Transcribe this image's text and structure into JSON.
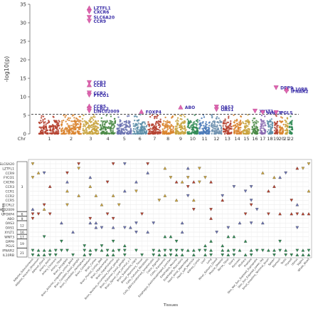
{
  "chart_data": [
    {
      "type": "scatter",
      "subtype": "manhattan",
      "ylabel": "-log10(p)",
      "ylim": [
        0,
        35
      ],
      "yticks": [
        0,
        5,
        10,
        15,
        20,
        25,
        30,
        35
      ],
      "xlabel": "Chr",
      "chromosomes": [
        "1",
        "2",
        "3",
        "4",
        "5",
        "6",
        "7",
        "8",
        "9",
        "10",
        "11",
        "12",
        "13",
        "14",
        "15",
        "16",
        "17",
        "18",
        "19",
        "20",
        "21",
        "22"
      ],
      "chromosome_colors": [
        "#b5412f",
        "#d9822b",
        "#c8a23c",
        "#4a8a45",
        "#6a72b0",
        "#5c8ea8",
        "#b5412f",
        "#d9822b",
        "#c8a23c",
        "#2f8a53",
        "#4a7ab8",
        "#6c8fae",
        "#b5412f",
        "#d9822b",
        "#c8a23c",
        "#4a8a45",
        "#8a6ab0",
        "#5c8ea8",
        "#b5412f",
        "#d9822b",
        "#c8a23c",
        "#2f8a53"
      ],
      "significance_line": 5.3,
      "grid": false,
      "annotations": [
        {
          "genes": [
            "LZTFL1",
            "CXCR6",
            "SLC6A20",
            "CCR9"
          ],
          "chr": "3",
          "y": [
            34,
            33,
            31.5,
            30.5
          ],
          "color": "#e066b0",
          "marker": [
            "triangle-up",
            "triangle-down",
            "triangle-down",
            "triangle-down"
          ]
        },
        {
          "genes": [
            "CCR3",
            "CCR1"
          ],
          "chr": "3",
          "y": [
            13.9,
            13.2
          ],
          "color": "#e066b0",
          "marker": [
            "triangle-down",
            "triangle-up"
          ]
        },
        {
          "genes": [
            "CCR2",
            "FYCO1"
          ],
          "chr": "3",
          "y": [
            11.1,
            10.5
          ],
          "color": "#e066b0",
          "marker": [
            "triangle-down",
            "triangle-down"
          ]
        },
        {
          "genes": [
            "CCR5",
            "CCRL2",
            "LINC02009"
          ],
          "chr": "3",
          "y": [
            7.5,
            6.8,
            6.2
          ],
          "color": "#e066b0",
          "marker": [
            "triangle-up",
            "triangle-down",
            "triangle-down"
          ]
        },
        {
          "genes": [
            "FOXP4"
          ],
          "chr": "6",
          "y": [
            6.0
          ],
          "color": "#e066b0",
          "marker": [
            "triangle-up"
          ]
        },
        {
          "genes": [
            "ABO"
          ],
          "chr": "9",
          "y": [
            7.2
          ],
          "color": "#e066b0",
          "marker": [
            "triangle-up"
          ]
        },
        {
          "genes": [
            "OAS3",
            "OAS1"
          ],
          "chr": "12",
          "y": [
            7.3,
            6.6
          ],
          "color": "#e066b0",
          "marker": [
            "triangle-down",
            "triangle-down"
          ]
        },
        {
          "genes": [
            "XYLT1"
          ],
          "chr": "16",
          "y": [
            6.2
          ],
          "color": "#e066b0",
          "marker": [
            "triangle-down"
          ]
        },
        {
          "genes": [
            "WNT3"
          ],
          "chr": "17",
          "y": [
            5.8
          ],
          "color": "#e066b0",
          "marker": [
            "triangle-down"
          ]
        },
        {
          "genes": [
            "PGLS"
          ],
          "chr": "19",
          "y": [
            5.8
          ],
          "color": "#e066b0",
          "marker": [
            "triangle-down"
          ]
        },
        {
          "genes": [
            "DPP9"
          ],
          "chr": "19",
          "y": [
            12.5
          ],
          "color": "#e066b0",
          "marker": [
            "triangle-down"
          ]
        },
        {
          "genes": [
            "IL10RB",
            "IFNAR2"
          ],
          "chr": "21",
          "y": [
            12.1,
            11.5
          ],
          "color": "#e066b0",
          "marker": [
            "triangle-up",
            "triangle-down"
          ]
        }
      ]
    },
    {
      "type": "scatter",
      "subtype": "gene-tissue matrix",
      "ylabel": "Genes",
      "xlabel": "Tissues",
      "genes": [
        "SLC6A20",
        "LZTFL1",
        "CCR9",
        "FYCO1",
        "CXCR6",
        "CCR3",
        "CCR1",
        "CCR2",
        "CCR5",
        "CCRL2",
        "LINC02009",
        "FOXP4",
        "ABO",
        "OAS3",
        "OAS1",
        "XYLT1",
        "WNT3",
        "DPP9",
        "PGLS",
        "IFNAR2",
        "IL10RB"
      ],
      "gene_groups": [
        {
          "locus": "3",
          "genes": [
            "SLC6A20",
            "LZTFL1",
            "CCR9",
            "FYCO1",
            "CXCR6",
            "CCR3",
            "CCR1",
            "CCR2",
            "CCR5",
            "CCRL2",
            "LINC02009"
          ]
        },
        {
          "locus": "6",
          "genes": [
            "FOXP4"
          ]
        },
        {
          "locus": "9",
          "genes": [
            "ABO"
          ]
        },
        {
          "locus": "12",
          "genes": [
            "OAS3",
            "OAS1"
          ]
        },
        {
          "locus": "16",
          "genes": [
            "XYLT1"
          ]
        },
        {
          "locus": "17",
          "genes": [
            "WNT3"
          ]
        },
        {
          "locus": "19",
          "genes": [
            "DPP9",
            "PGLS"
          ]
        },
        {
          "locus": "21",
          "genes": [
            "IFNAR2",
            "IL10RB"
          ]
        }
      ],
      "tissues": [
        "Adipose_Subcutaneous",
        "Adipose_Visceral_Omentum",
        "Adrenal_Gland",
        "Artery_Aorta",
        "Artery_Coronary",
        "Artery_Tibial",
        "Brain_Amygdala",
        "Brain_Anterior_cingulate_cortex_BA24",
        "Brain_Caudate_basal_ganglia",
        "Brain_Cerebellar_Hemisphere",
        "Brain_Cerebellum",
        "Brain_Cortex",
        "Brain_Frontal_Cortex_BA9",
        "Brain_Hippocampus",
        "Brain_Hypothalamus",
        "Brain_Nucleus_accumbens_basal_ganglia",
        "Brain_Putamen_basal_ganglia",
        "Brain_Spinal_cord_cervical_c-1",
        "Brain_Substantia_nigra",
        "Breast_Mammary_Tissue",
        "Cells_Cultured_fibroblasts",
        "Cells_EBV-transformed_lymphocytes",
        "Colon_Sigmoid",
        "Colon_Transverse",
        "Esophagus_Gastroesophageal_Junction",
        "Esophagus_Mucosa",
        "Esophagus_Muscularis",
        "Heart_Atrial_Appendage",
        "Heart_Left_Ventricle",
        "Kidney_Cortex",
        "Liver",
        "Lung",
        "Minor_Salivary_Gland",
        "Muscle_Skeletal",
        "Nerve_Tibial",
        "Ovary",
        "Pancreas",
        "Pituitary",
        "Prostate",
        "Skin_Not_Sun_Exposed_Suprapubic",
        "Skin_Sun_Exposed_Lower_leg",
        "Small_Intestine_Terminal_Ileum",
        "Spleen",
        "Stomach",
        "Testis",
        "Thyroid",
        "Uterus",
        "Vagina",
        "Whole_Blood"
      ],
      "grid": true,
      "marker_legend": {
        "up": "triangle-up",
        "down": "triangle-down"
      }
    }
  ]
}
